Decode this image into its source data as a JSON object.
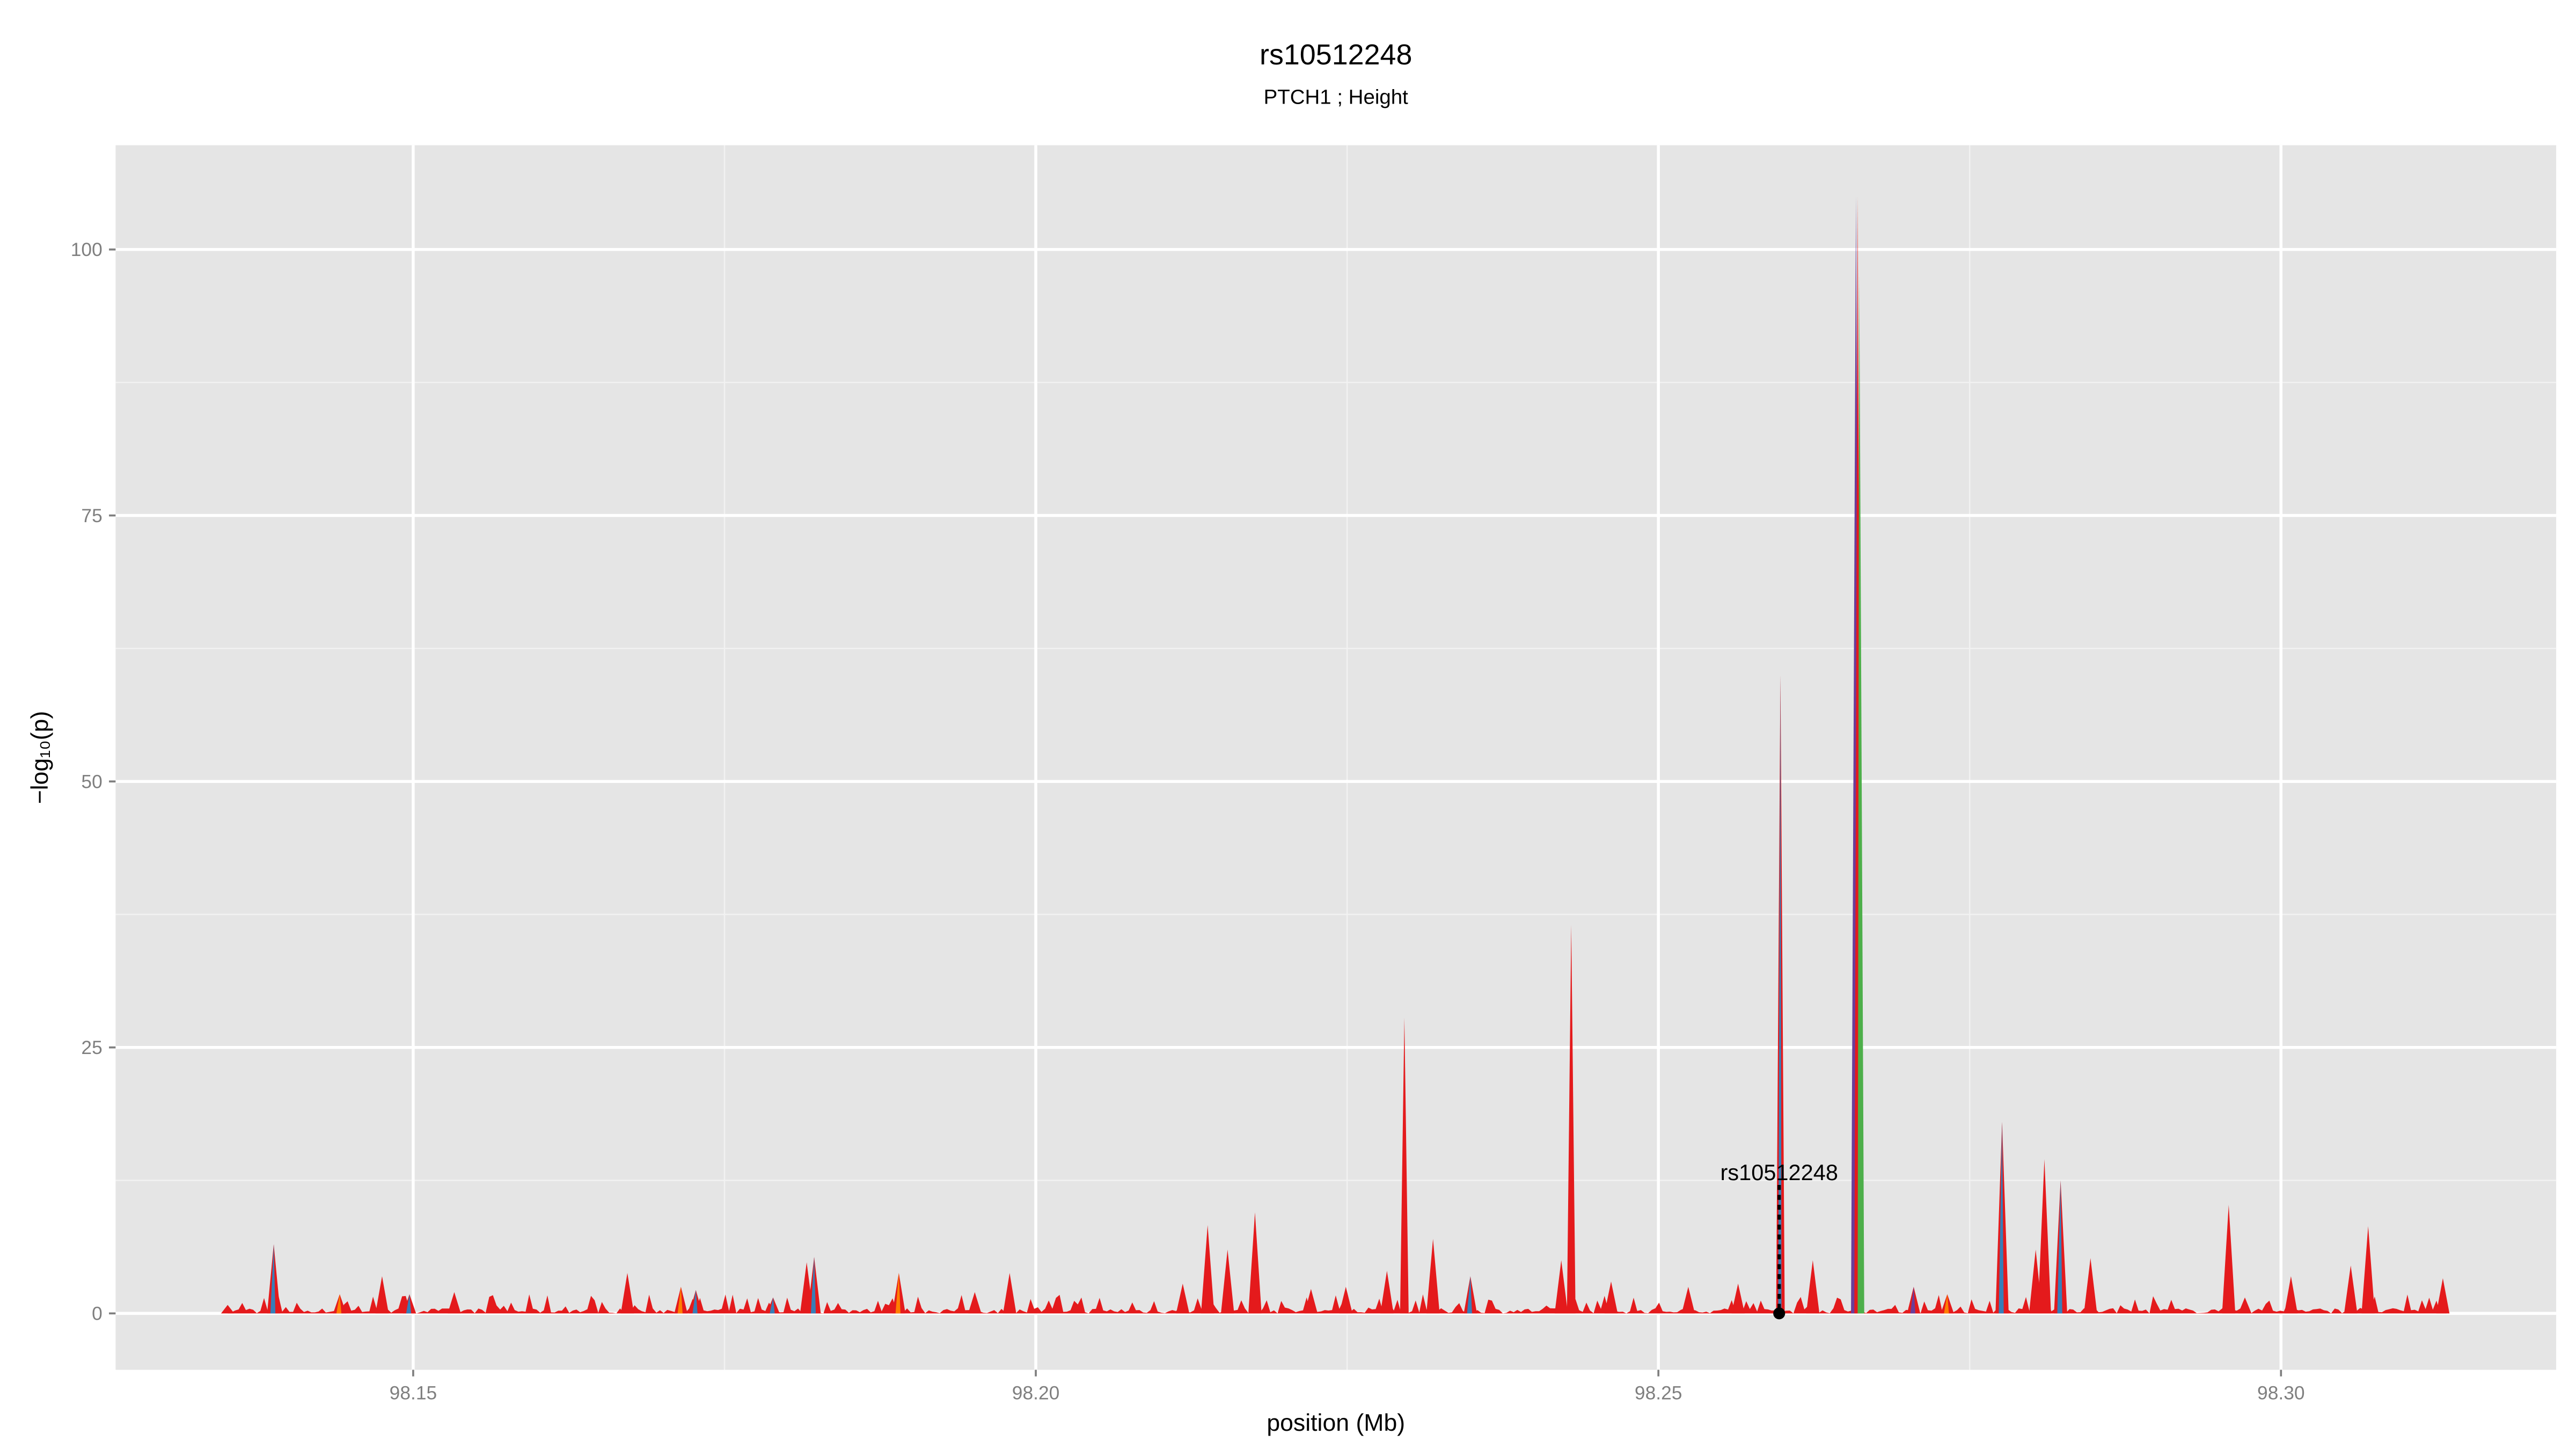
{
  "chart_data": {
    "type": "area",
    "title": "rs10512248",
    "subtitle": "PTCH1 ; Height",
    "xlabel": "position (Mb)",
    "ylabel": "−log₁₀(p)",
    "xlim": [
      98.1261,
      98.3221
    ],
    "ylim": [
      -5.3,
      109.8
    ],
    "x_ticks": [
      98.15,
      98.2,
      98.25,
      98.3
    ],
    "x_tick_labels": [
      "98.15",
      "98.20",
      "98.25",
      "98.30"
    ],
    "y_ticks": [
      0,
      25,
      50,
      75,
      100
    ],
    "y_tick_labels": [
      "0",
      "25",
      "50",
      "75",
      "100"
    ],
    "grid": true,
    "background": "#E5E5E5",
    "colors": {
      "red": "#E41A1C",
      "blue": "#377EB8",
      "green": "#4DAF4A",
      "purple": "#6A3D9A",
      "orange": "#FF7F00"
    },
    "data_range": [
      98.1351,
      98.3133
    ],
    "peaks": [
      {
        "x": 98.1351,
        "y": 0.8,
        "color": "red"
      },
      {
        "x": 98.1388,
        "y": 6.5,
        "color": "blue"
      },
      {
        "x": 98.1441,
        "y": 1.8,
        "color": "orange"
      },
      {
        "x": 98.1475,
        "y": 3.5,
        "color": "red"
      },
      {
        "x": 98.1497,
        "y": 1.8,
        "color": "blue"
      },
      {
        "x": 98.1533,
        "y": 2.0,
        "color": "red"
      },
      {
        "x": 98.1672,
        "y": 3.8,
        "color": "red"
      },
      {
        "x": 98.1715,
        "y": 2.5,
        "color": "orange"
      },
      {
        "x": 98.1727,
        "y": 2.2,
        "color": "blue"
      },
      {
        "x": 98.1789,
        "y": 1.5,
        "color": "blue"
      },
      {
        "x": 98.1816,
        "y": 4.8,
        "color": "red"
      },
      {
        "x": 98.1822,
        "y": 5.3,
        "color": "blue"
      },
      {
        "x": 98.189,
        "y": 3.8,
        "color": "orange"
      },
      {
        "x": 98.1951,
        "y": 2.0,
        "color": "red"
      },
      {
        "x": 98.1979,
        "y": 3.8,
        "color": "red"
      },
      {
        "x": 98.2118,
        "y": 2.8,
        "color": "red"
      },
      {
        "x": 98.2138,
        "y": 8.3,
        "color": "red"
      },
      {
        "x": 98.2154,
        "y": 6.0,
        "color": "red"
      },
      {
        "x": 98.2176,
        "y": 9.5,
        "color": "red"
      },
      {
        "x": 98.2221,
        "y": 2.3,
        "color": "red"
      },
      {
        "x": 98.2249,
        "y": 2.5,
        "color": "red"
      },
      {
        "x": 98.2282,
        "y": 4.0,
        "color": "red"
      },
      {
        "x": 98.2296,
        "y": 27.8,
        "color": "red"
      },
      {
        "x": 98.2319,
        "y": 7.0,
        "color": "red"
      },
      {
        "x": 98.2349,
        "y": 3.5,
        "color": "blue"
      },
      {
        "x": 98.2422,
        "y": 5.0,
        "color": "red"
      },
      {
        "x": 98.243,
        "y": 36.5,
        "color": "red"
      },
      {
        "x": 98.2462,
        "y": 3.0,
        "color": "red"
      },
      {
        "x": 98.2524,
        "y": 2.5,
        "color": "red"
      },
      {
        "x": 98.2564,
        "y": 2.8,
        "color": "red"
      },
      {
        "x": 98.2598,
        "y": 60.0,
        "color": "blue"
      },
      {
        "x": 98.2624,
        "y": 5.0,
        "color": "red"
      },
      {
        "x": 98.266,
        "y": 105.0,
        "color": "multi"
      },
      {
        "x": 98.2705,
        "y": 2.5,
        "color": "purple"
      },
      {
        "x": 98.2732,
        "y": 1.8,
        "color": "orange"
      },
      {
        "x": 98.2776,
        "y": 18.0,
        "color": "blue"
      },
      {
        "x": 98.2803,
        "y": 6.0,
        "color": "red"
      },
      {
        "x": 98.281,
        "y": 14.5,
        "color": "red"
      },
      {
        "x": 98.2823,
        "y": 12.5,
        "color": "blue"
      },
      {
        "x": 98.2847,
        "y": 5.2,
        "color": "red"
      },
      {
        "x": 98.2958,
        "y": 10.2,
        "color": "red"
      },
      {
        "x": 98.2971,
        "y": 1.5,
        "color": "red"
      },
      {
        "x": 98.3008,
        "y": 3.5,
        "color": "red"
      },
      {
        "x": 98.3056,
        "y": 4.5,
        "color": "red"
      },
      {
        "x": 98.307,
        "y": 8.2,
        "color": "red"
      },
      {
        "x": 98.313,
        "y": 3.3,
        "color": "red"
      }
    ],
    "annotation": {
      "label": "rs10512248",
      "x": 98.2597,
      "y": 0,
      "label_y": 13
    }
  }
}
